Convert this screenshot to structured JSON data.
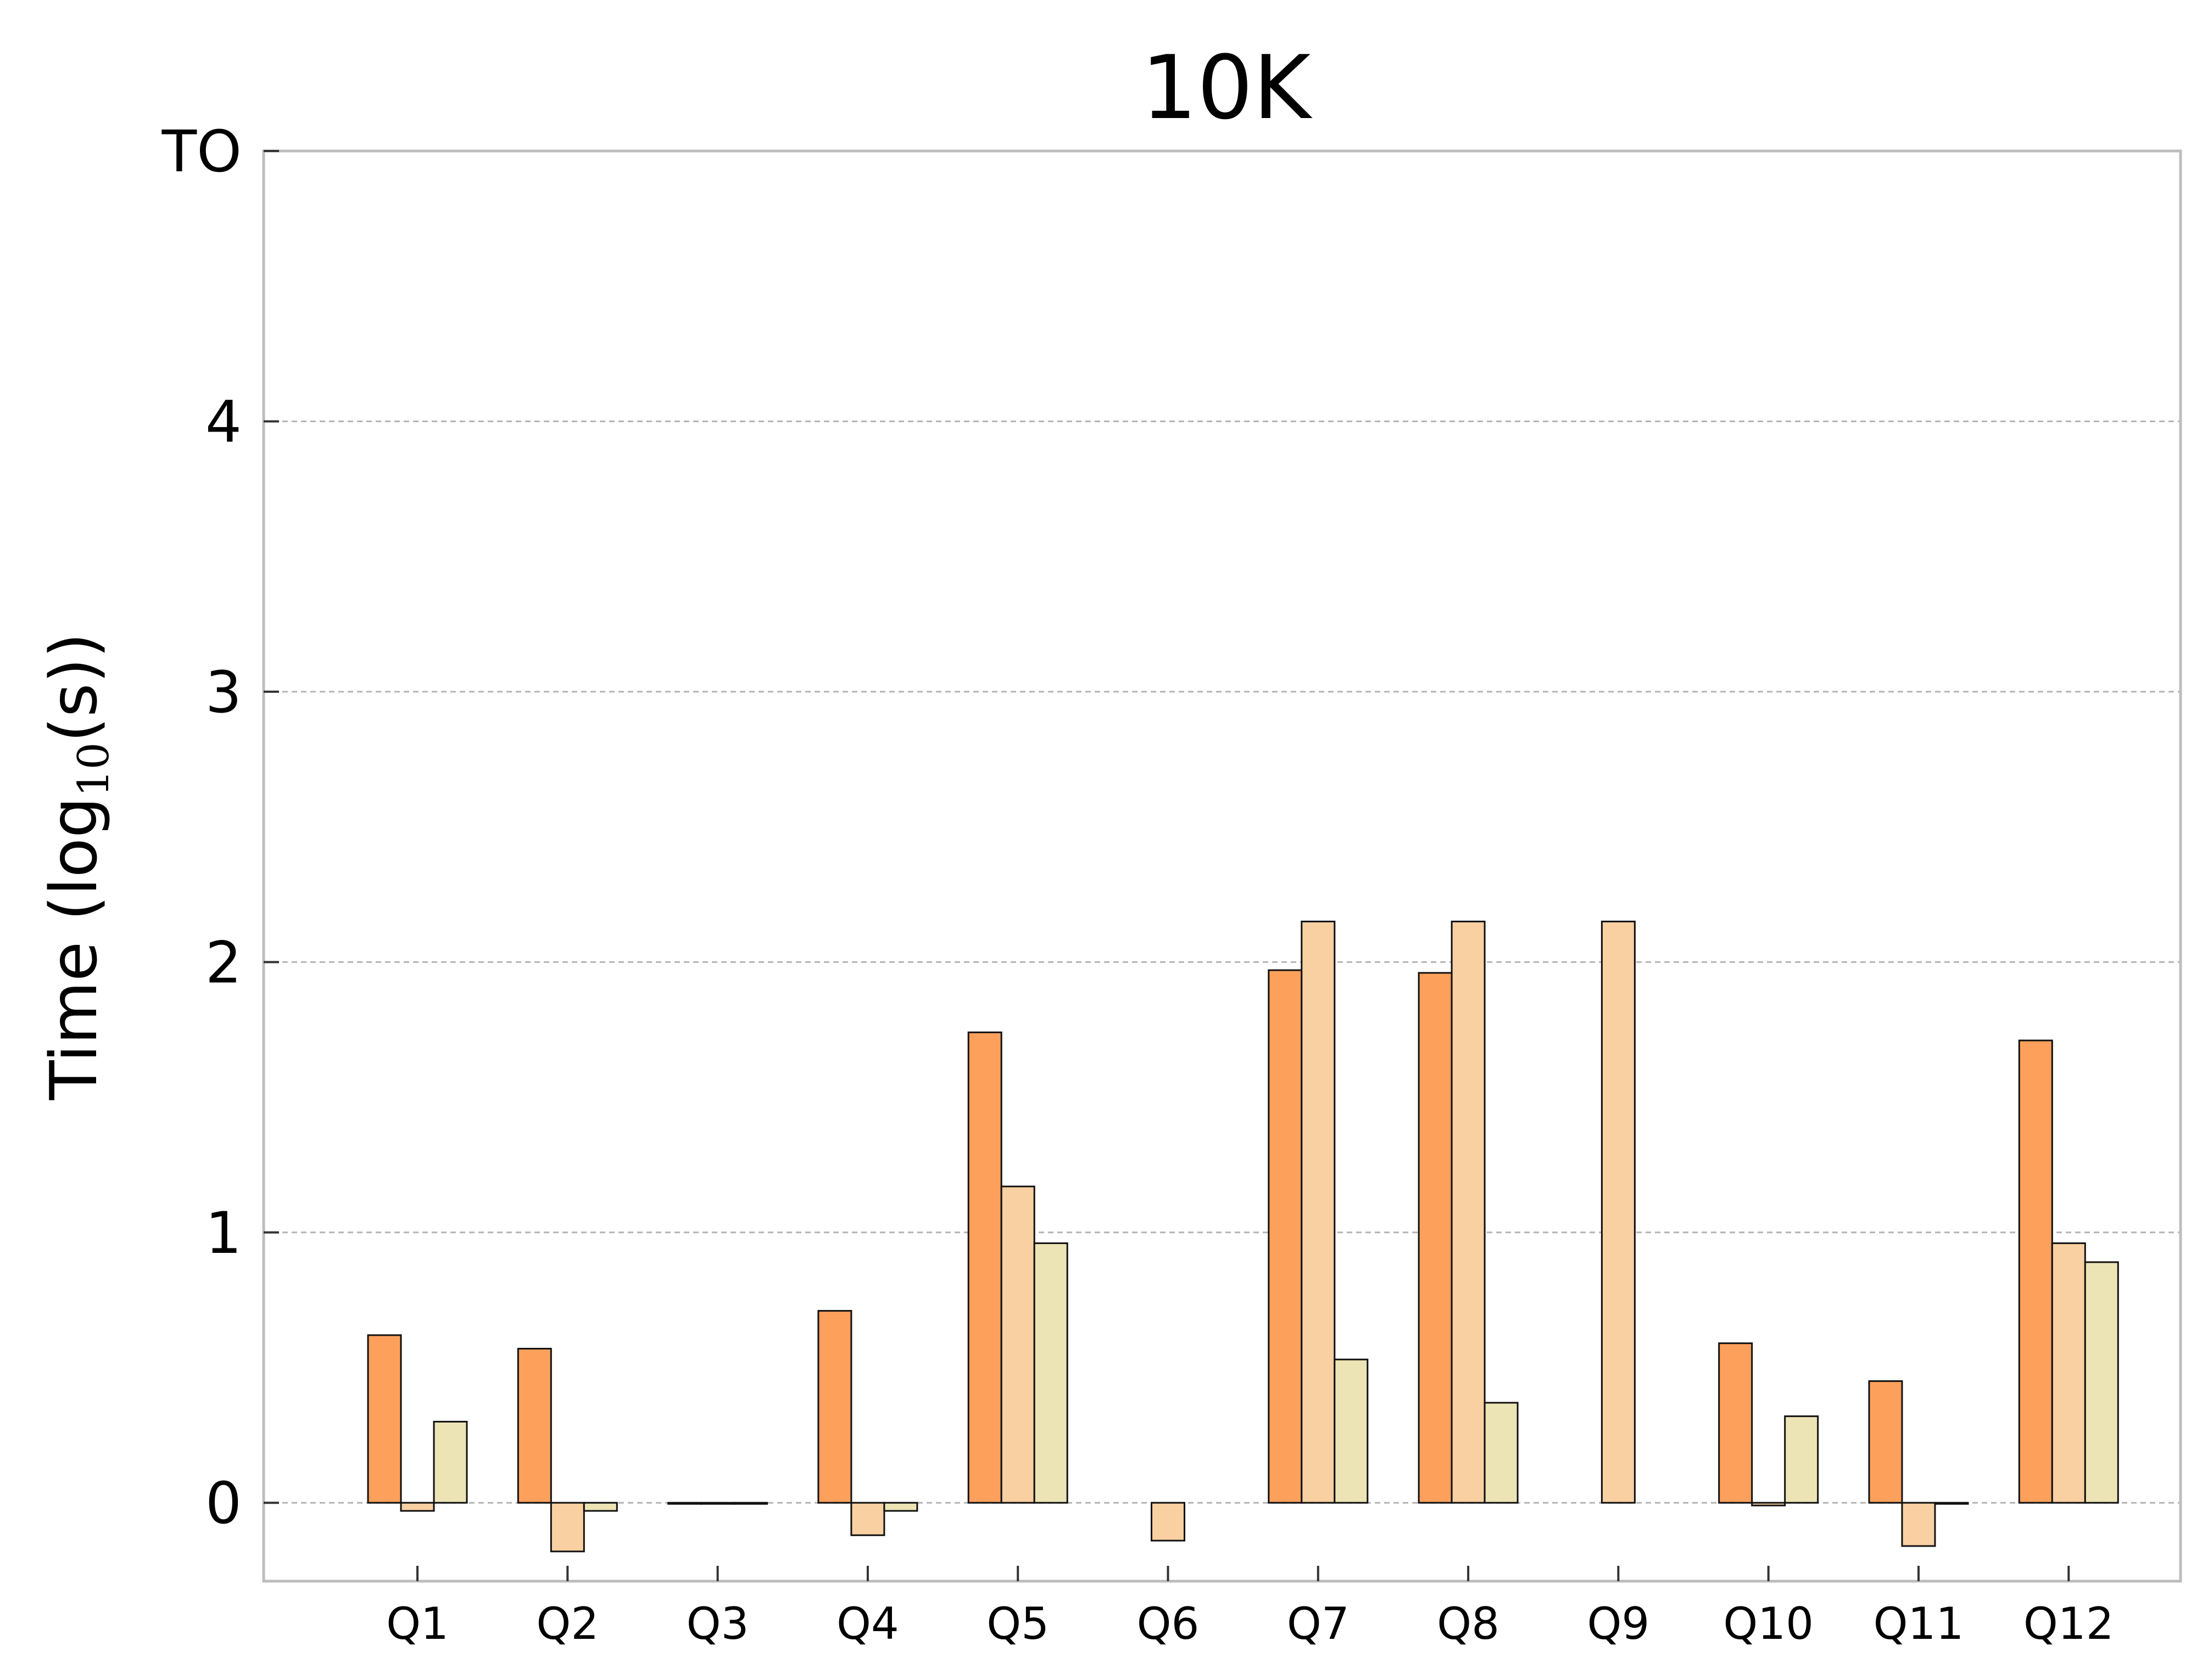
{
  "chart_data": {
    "type": "bar",
    "title": "10K",
    "ylabel": {
      "prefix": "Time (log",
      "subscript": "10",
      "suffix": "(s))"
    },
    "xlabel": "",
    "categories": [
      "Q1",
      "Q2",
      "Q3",
      "Q4",
      "Q5",
      "Q6",
      "Q7",
      "Q8",
      "Q9",
      "Q10",
      "Q11",
      "Q12"
    ],
    "yticks": [
      {
        "value": 0,
        "label": "0"
      },
      {
        "value": 1,
        "label": "1"
      },
      {
        "value": 2,
        "label": "2"
      },
      {
        "value": 3,
        "label": "3"
      },
      {
        "value": 4,
        "label": "4"
      },
      {
        "value": 5,
        "label": "TO"
      }
    ],
    "ylim": [
      -0.29,
      5
    ],
    "grid": "y-dashed",
    "series": [
      {
        "color": "#fca05c",
        "values": [
          0.62,
          0.57,
          0,
          0.71,
          1.74,
          null,
          1.97,
          1.96,
          null,
          0.59,
          0.45,
          1.71
        ]
      },
      {
        "color": "#f9d0a2",
        "values": [
          -0.03,
          -0.18,
          0,
          -0.12,
          1.17,
          -0.14,
          2.15,
          2.15,
          2.15,
          -0.01,
          -0.16,
          0.96
        ]
      },
      {
        "color": "#ede4b5",
        "values": [
          0.3,
          -0.03,
          0,
          -0.03,
          0.96,
          null,
          0.53,
          0.37,
          null,
          0.32,
          0.0,
          0.89
        ]
      }
    ]
  }
}
